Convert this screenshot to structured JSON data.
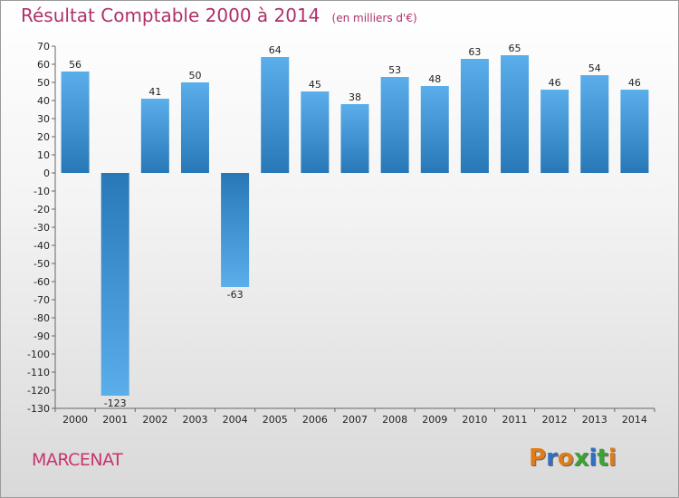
{
  "header": {
    "title": "Résultat Comptable 2000 à 2014",
    "unit": "(en milliers d'€)"
  },
  "commune": "MARCENAT",
  "logo": {
    "text": "Proxiti",
    "letters": [
      {
        "ch": "P",
        "color": "#e07b1a"
      },
      {
        "ch": "r",
        "color": "#2f6fc4"
      },
      {
        "ch": "o",
        "color": "#e07b1a"
      },
      {
        "ch": "x",
        "color": "#3aa335"
      },
      {
        "ch": "i",
        "color": "#2f6fc4"
      },
      {
        "ch": "t",
        "color": "#3aa335"
      },
      {
        "ch": "i",
        "color": "#e07b1a"
      }
    ]
  },
  "colors": {
    "bar_top": "#5aaeea",
    "bar_bottom": "#2878b8",
    "title": "#b0306a"
  },
  "chart_data": {
    "type": "bar",
    "title": "Résultat Comptable 2000 à 2014",
    "subtitle": "(en milliers d'€)",
    "xlabel": "",
    "ylabel": "",
    "categories": [
      "2000",
      "2001",
      "2002",
      "2003",
      "2004",
      "2005",
      "2006",
      "2007",
      "2008",
      "2009",
      "2010",
      "2011",
      "2012",
      "2013",
      "2014"
    ],
    "values": [
      56,
      -123,
      41,
      50,
      -63,
      64,
      45,
      38,
      53,
      48,
      63,
      65,
      46,
      54,
      46
    ],
    "ylim": [
      -130,
      70
    ],
    "yticks": [
      70,
      60,
      50,
      40,
      30,
      20,
      10,
      0,
      -10,
      -20,
      -30,
      -40,
      -50,
      -60,
      -70,
      -80,
      -90,
      -100,
      -110,
      -120,
      -130
    ],
    "grid": false,
    "legend": "none"
  }
}
